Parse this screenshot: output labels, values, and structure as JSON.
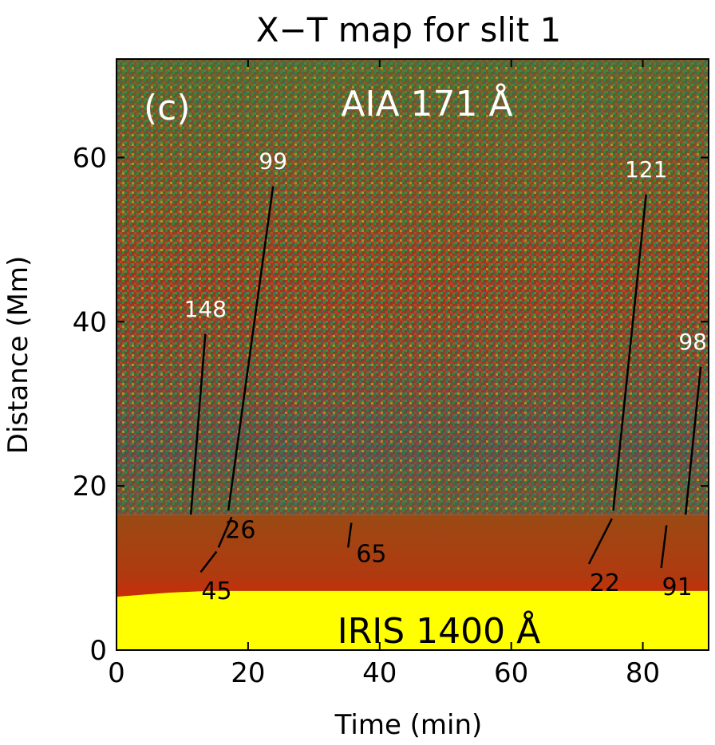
{
  "chart_data": {
    "type": "heatmap",
    "title": "X−T map for slit 1",
    "xlabel": "Time (min)",
    "ylabel": "Distance (Mm)",
    "xlim": [
      0,
      90
    ],
    "ylim": [
      0,
      72
    ],
    "xticks": [
      0,
      20,
      40,
      60,
      80
    ],
    "yticks": [
      0,
      20,
      40,
      60
    ],
    "boundary_distance": 16.5,
    "panel_label": "(c)",
    "upper_channel": "AIA 171 Å",
    "lower_channel": "IRIS 1400 Å",
    "colors": {
      "upper_base": "#c8281e",
      "upper_alt": "#2a8a3a",
      "lower_base": "#b43c0a",
      "bright": "#ffff00",
      "annotation_upper": "#ffffff",
      "annotation_lower": "#000000"
    },
    "upper_tracks": [
      {
        "label": "148",
        "t0": 11.3,
        "d0": 16.5,
        "t1": 13.5,
        "d1": 38.5
      },
      {
        "label": "99",
        "t0": 17.0,
        "d0": 17.0,
        "t1": 23.8,
        "d1": 56.5
      },
      {
        "label": "121",
        "t0": 75.5,
        "d0": 17.0,
        "t1": 80.5,
        "d1": 55.5
      },
      {
        "label": "98",
        "t0": 86.5,
        "d0": 16.5,
        "t1": 88.8,
        "d1": 34.5
      }
    ],
    "lower_tracks": [
      {
        "label": "26",
        "t0": 15.5,
        "d0": 12.5,
        "t1": 17.5,
        "d1": 16.2
      },
      {
        "label": "45",
        "t0": 12.8,
        "d0": 9.5,
        "t1": 15.2,
        "d1": 12.0
      },
      {
        "label": "65",
        "t0": 35.2,
        "d0": 12.5,
        "t1": 35.7,
        "d1": 15.5
      },
      {
        "label": "22",
        "t0": 71.8,
        "d0": 10.5,
        "t1": 75.3,
        "d1": 16.0
      },
      {
        "label": "91",
        "t0": 82.8,
        "d0": 10.0,
        "t1": 83.6,
        "d1": 15.2
      }
    ]
  }
}
